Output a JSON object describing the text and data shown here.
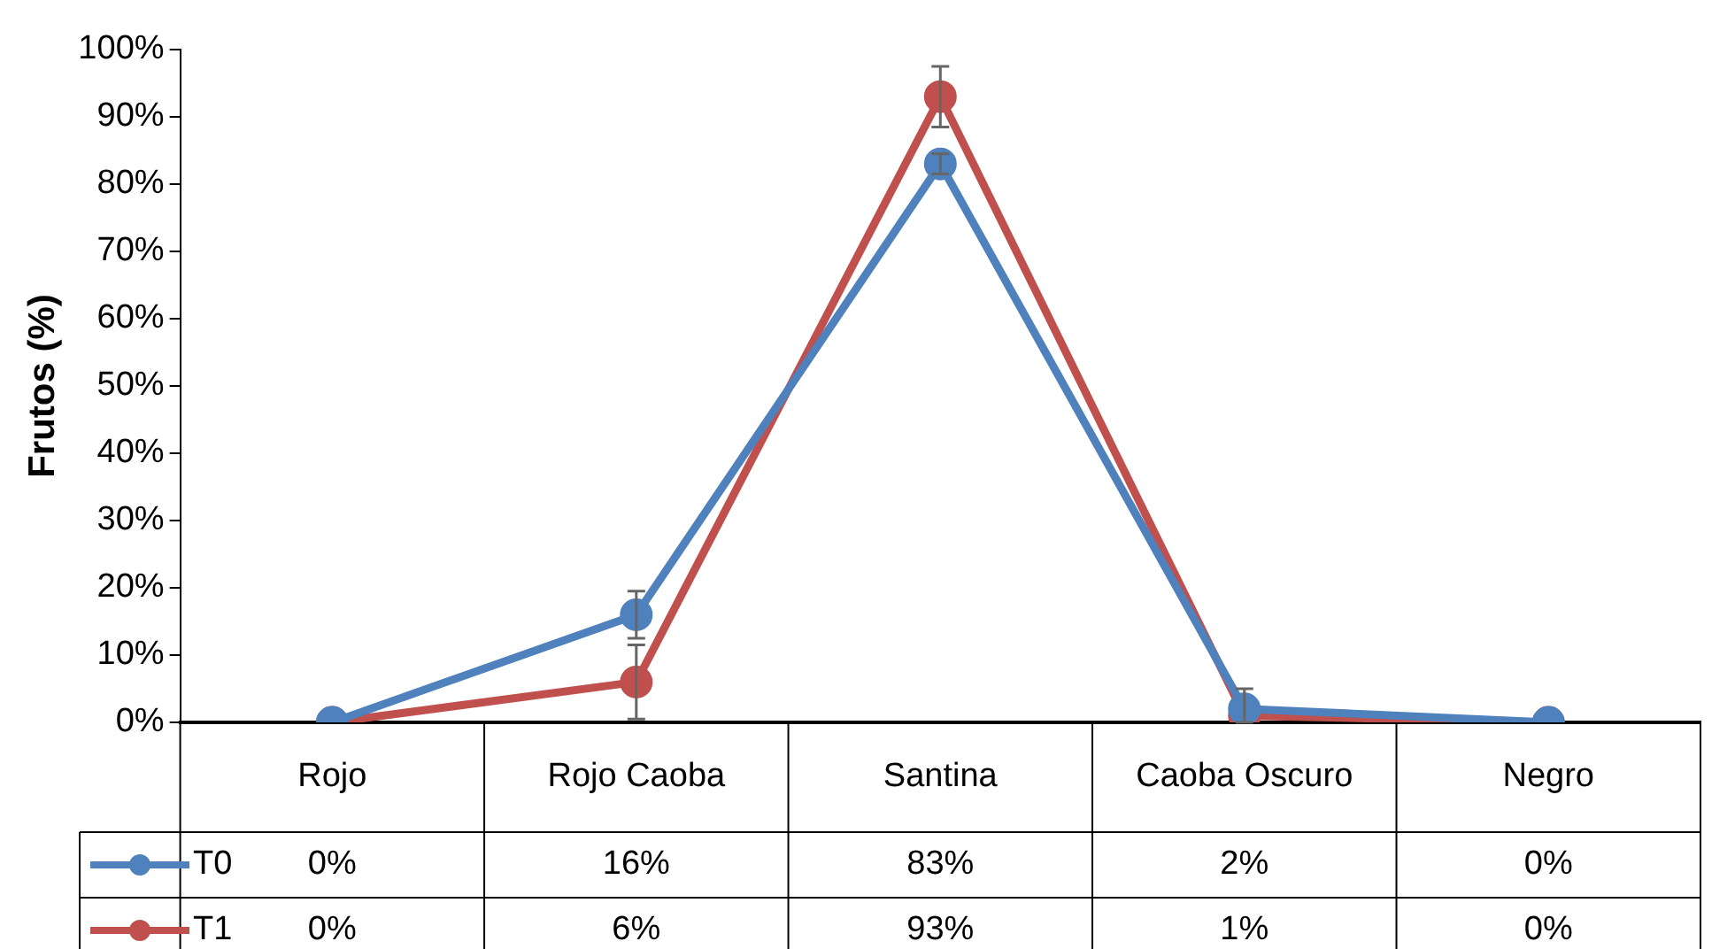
{
  "chart_data": {
    "type": "line",
    "ylabel": "Frutos (%)",
    "categories": [
      "Rojo",
      "Rojo Caoba",
      "Santina",
      "Caoba Oscuro",
      "Negro"
    ],
    "series": [
      {
        "name": "T0",
        "color": "#4f81bd",
        "values": [
          0,
          16,
          83,
          2,
          0
        ],
        "errors": [
          null,
          3.5,
          1.5,
          [
            0,
            5
          ],
          null
        ],
        "value_labels": [
          "0%",
          "16%",
          "83%",
          "2%",
          "0%"
        ]
      },
      {
        "name": "T1",
        "color": "#c0504d",
        "values": [
          0,
          6,
          93,
          1,
          0
        ],
        "errors": [
          null,
          5.5,
          4.5,
          null,
          null
        ],
        "value_labels": [
          "0%",
          "6%",
          "93%",
          "1%",
          "0%"
        ]
      }
    ],
    "ylim": [
      0,
      100
    ],
    "yticks": [
      {
        "value": 0,
        "label": "0%"
      },
      {
        "value": 10,
        "label": "10%"
      },
      {
        "value": 20,
        "label": "20%"
      },
      {
        "value": 30,
        "label": "30%"
      },
      {
        "value": 40,
        "label": "40%"
      },
      {
        "value": 50,
        "label": "50%"
      },
      {
        "value": 60,
        "label": "60%"
      },
      {
        "value": 70,
        "label": "70%"
      },
      {
        "value": 80,
        "label": "80%"
      },
      {
        "value": 90,
        "label": "90%"
      },
      {
        "value": 100,
        "label": "100%"
      }
    ],
    "legend": "bottom",
    "marker": "circle",
    "grid": false
  }
}
